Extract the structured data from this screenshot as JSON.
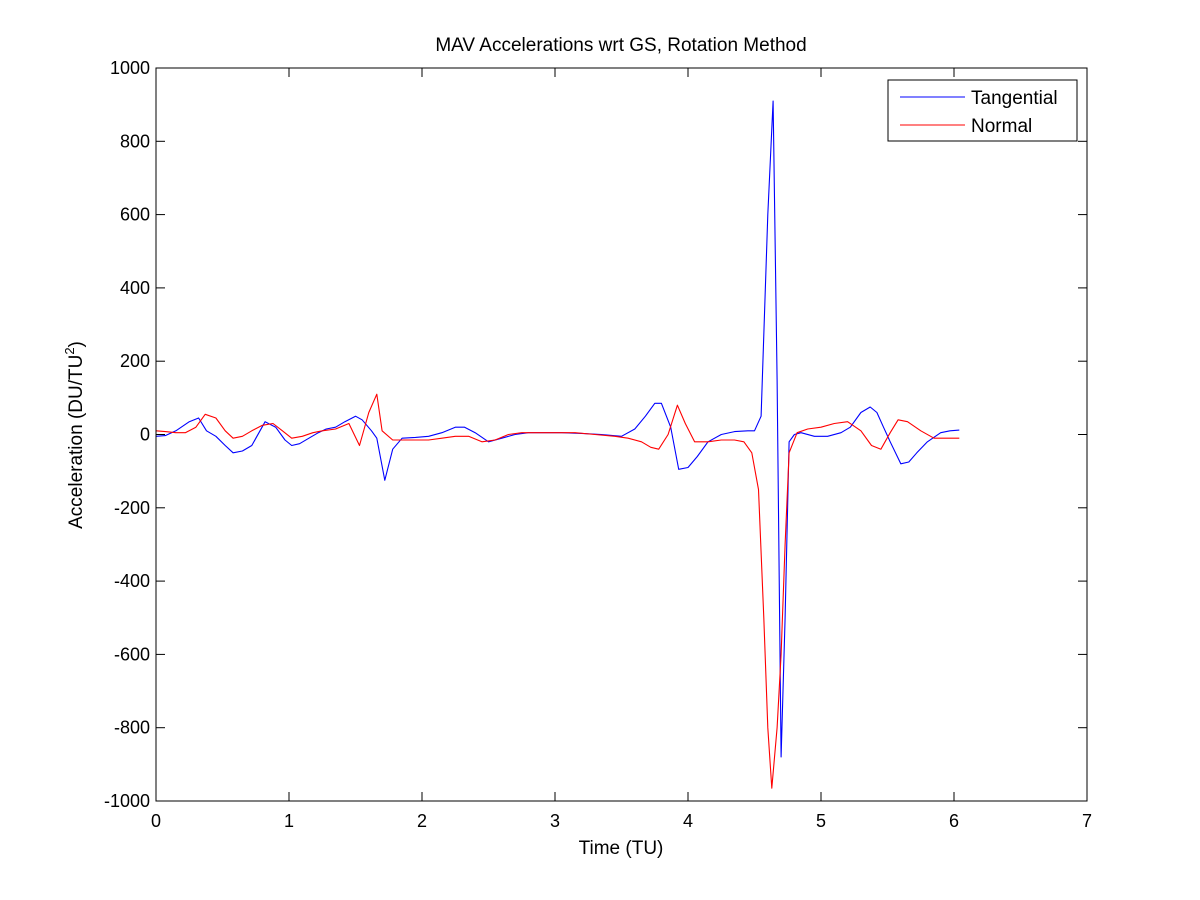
{
  "chart_data": {
    "type": "line",
    "title": "MAV Accelerations wrt GS, Rotation Method",
    "xlabel": "Time (TU)",
    "ylabel": "Acceleration (DU/TU",
    "ylabel_superscript": "2",
    "ylabel_suffix": ")",
    "xlim": [
      0,
      7
    ],
    "ylim": [
      -1000,
      1000
    ],
    "xticks": [
      0,
      1,
      2,
      3,
      4,
      5,
      6,
      7
    ],
    "yticks": [
      -1000,
      -800,
      -600,
      -400,
      -200,
      0,
      200,
      400,
      600,
      800,
      1000
    ],
    "grid": false,
    "legend_position": "top-right",
    "series": [
      {
        "name": "Tangential",
        "color": "#0000ff",
        "points": [
          [
            0,
            -5
          ],
          [
            0.07,
            -3
          ],
          [
            0.15,
            10
          ],
          [
            0.25,
            35
          ],
          [
            0.32,
            45
          ],
          [
            0.38,
            10
          ],
          [
            0.45,
            -5
          ],
          [
            0.52,
            -30
          ],
          [
            0.58,
            -50
          ],
          [
            0.65,
            -45
          ],
          [
            0.72,
            -30
          ],
          [
            0.82,
            35
          ],
          [
            0.9,
            20
          ],
          [
            0.97,
            -15
          ],
          [
            1.02,
            -30
          ],
          [
            1.08,
            -25
          ],
          [
            1.15,
            -10
          ],
          [
            1.22,
            5
          ],
          [
            1.28,
            15
          ],
          [
            1.35,
            20
          ],
          [
            1.42,
            35
          ],
          [
            1.5,
            50
          ],
          [
            1.55,
            40
          ],
          [
            1.62,
            10
          ],
          [
            1.66,
            -10
          ],
          [
            1.72,
            -125
          ],
          [
            1.78,
            -40
          ],
          [
            1.85,
            -10
          ],
          [
            1.95,
            -8
          ],
          [
            2.05,
            -5
          ],
          [
            2.15,
            5
          ],
          [
            2.25,
            20
          ],
          [
            2.32,
            20
          ],
          [
            2.4,
            5
          ],
          [
            2.5,
            -20
          ],
          [
            2.6,
            -10
          ],
          [
            2.7,
            0
          ],
          [
            2.8,
            5
          ],
          [
            2.95,
            5
          ],
          [
            3.05,
            5
          ],
          [
            3.2,
            3
          ],
          [
            3.35,
            0
          ],
          [
            3.5,
            -5
          ],
          [
            3.6,
            15
          ],
          [
            3.68,
            50
          ],
          [
            3.75,
            85
          ],
          [
            3.8,
            85
          ],
          [
            3.87,
            20
          ],
          [
            3.93,
            -95
          ],
          [
            4.0,
            -90
          ],
          [
            4.07,
            -60
          ],
          [
            4.15,
            -20
          ],
          [
            4.25,
            0
          ],
          [
            4.35,
            8
          ],
          [
            4.45,
            10
          ],
          [
            4.5,
            10
          ],
          [
            4.55,
            50
          ],
          [
            4.6,
            600
          ],
          [
            4.64,
            910
          ],
          [
            4.67,
            150
          ],
          [
            4.7,
            -880
          ],
          [
            4.73,
            -500
          ],
          [
            4.76,
            -20
          ],
          [
            4.8,
            0
          ],
          [
            4.85,
            5
          ],
          [
            4.95,
            -5
          ],
          [
            5.05,
            -5
          ],
          [
            5.15,
            5
          ],
          [
            5.22,
            20
          ],
          [
            5.3,
            60
          ],
          [
            5.37,
            75
          ],
          [
            5.42,
            60
          ],
          [
            5.47,
            20
          ],
          [
            5.52,
            -20
          ],
          [
            5.6,
            -80
          ],
          [
            5.66,
            -75
          ],
          [
            5.72,
            -50
          ],
          [
            5.8,
            -20
          ],
          [
            5.9,
            5
          ],
          [
            5.97,
            10
          ],
          [
            6.04,
            12
          ]
        ]
      },
      {
        "name": "Normal",
        "color": "#ff0000",
        "points": [
          [
            0,
            10
          ],
          [
            0.07,
            8
          ],
          [
            0.15,
            5
          ],
          [
            0.22,
            5
          ],
          [
            0.3,
            20
          ],
          [
            0.37,
            55
          ],
          [
            0.45,
            45
          ],
          [
            0.52,
            10
          ],
          [
            0.58,
            -10
          ],
          [
            0.65,
            -5
          ],
          [
            0.72,
            10
          ],
          [
            0.8,
            25
          ],
          [
            0.88,
            30
          ],
          [
            0.95,
            10
          ],
          [
            1.02,
            -10
          ],
          [
            1.1,
            -5
          ],
          [
            1.18,
            5
          ],
          [
            1.25,
            10
          ],
          [
            1.35,
            15
          ],
          [
            1.45,
            30
          ],
          [
            1.53,
            -30
          ],
          [
            1.6,
            60
          ],
          [
            1.66,
            110
          ],
          [
            1.7,
            10
          ],
          [
            1.78,
            -15
          ],
          [
            1.85,
            -15
          ],
          [
            1.95,
            -15
          ],
          [
            2.05,
            -15
          ],
          [
            2.15,
            -10
          ],
          [
            2.25,
            -5
          ],
          [
            2.35,
            -5
          ],
          [
            2.45,
            -20
          ],
          [
            2.55,
            -15
          ],
          [
            2.65,
            0
          ],
          [
            2.75,
            5
          ],
          [
            2.85,
            5
          ],
          [
            2.95,
            5
          ],
          [
            3.05,
            5
          ],
          [
            3.15,
            5
          ],
          [
            3.3,
            0
          ],
          [
            3.45,
            -5
          ],
          [
            3.55,
            -10
          ],
          [
            3.65,
            -20
          ],
          [
            3.72,
            -35
          ],
          [
            3.78,
            -40
          ],
          [
            3.85,
            0
          ],
          [
            3.92,
            80
          ],
          [
            3.98,
            30
          ],
          [
            4.05,
            -20
          ],
          [
            4.15,
            -20
          ],
          [
            4.25,
            -15
          ],
          [
            4.35,
            -15
          ],
          [
            4.42,
            -20
          ],
          [
            4.48,
            -50
          ],
          [
            4.53,
            -150
          ],
          [
            4.57,
            -500
          ],
          [
            4.6,
            -800
          ],
          [
            4.63,
            -965
          ],
          [
            4.67,
            -800
          ],
          [
            4.7,
            -600
          ],
          [
            4.73,
            -300
          ],
          [
            4.76,
            -50
          ],
          [
            4.82,
            5
          ],
          [
            4.9,
            15
          ],
          [
            5.0,
            20
          ],
          [
            5.1,
            30
          ],
          [
            5.2,
            35
          ],
          [
            5.3,
            10
          ],
          [
            5.38,
            -30
          ],
          [
            5.45,
            -40
          ],
          [
            5.52,
            5
          ],
          [
            5.58,
            40
          ],
          [
            5.65,
            35
          ],
          [
            5.75,
            10
          ],
          [
            5.85,
            -10
          ],
          [
            5.95,
            -10
          ],
          [
            6.04,
            -10
          ]
        ]
      }
    ]
  }
}
